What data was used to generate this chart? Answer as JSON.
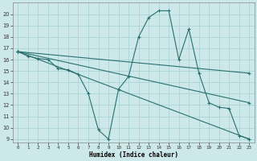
{
  "xlabel": "Humidex (Indice chaleur)",
  "background_color": "#cce8e8",
  "grid_color": "#aad4d4",
  "line_color": "#2a7070",
  "xlim": [
    -0.5,
    23.5
  ],
  "ylim": [
    8.7,
    21.0
  ],
  "yticks": [
    9,
    10,
    11,
    12,
    13,
    14,
    15,
    16,
    17,
    18,
    19,
    20
  ],
  "xticks": [
    0,
    1,
    2,
    3,
    4,
    5,
    6,
    7,
    8,
    9,
    10,
    11,
    12,
    13,
    14,
    15,
    16,
    17,
    18,
    19,
    20,
    21,
    22,
    23
  ],
  "lines": [
    {
      "x": [
        0,
        1,
        2,
        3,
        4,
        5,
        6,
        7,
        8,
        9,
        10,
        11,
        12,
        13,
        14,
        15,
        16,
        17,
        18,
        19,
        20,
        21,
        22,
        23
      ],
      "y": [
        16.7,
        16.3,
        16.1,
        16.0,
        15.2,
        15.1,
        14.7,
        13.0,
        9.8,
        9.0,
        13.4,
        14.5,
        18.0,
        19.7,
        20.3,
        20.3,
        16.0,
        18.7,
        14.8,
        12.2,
        11.8,
        11.7,
        9.3,
        9.0
      ]
    },
    {
      "x": [
        0,
        23
      ],
      "y": [
        16.7,
        9.0
      ]
    },
    {
      "x": [
        0,
        23
      ],
      "y": [
        16.7,
        14.8
      ]
    },
    {
      "x": [
        0,
        23
      ],
      "y": [
        16.7,
        12.2
      ]
    }
  ]
}
